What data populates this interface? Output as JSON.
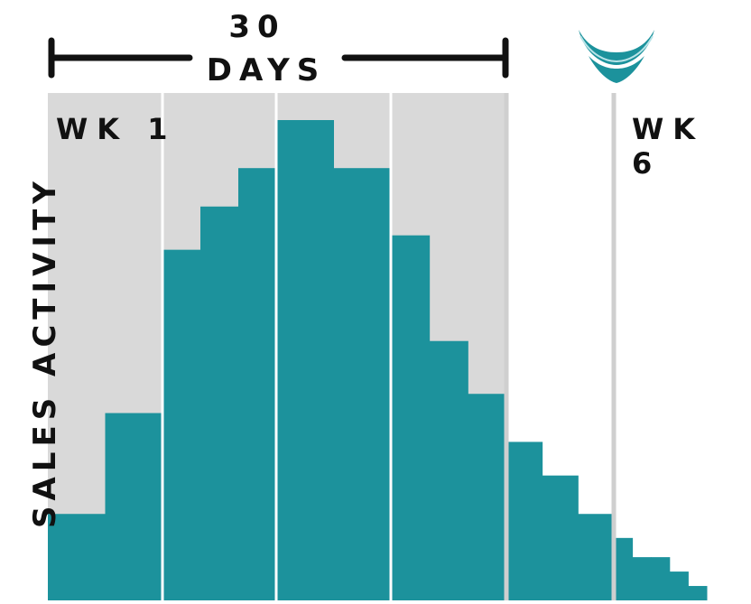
{
  "title": {
    "number": "30",
    "unit": "DAYS"
  },
  "chart_data": {
    "type": "bar",
    "title": "30 DAYS",
    "xlabel": "",
    "ylabel": "SALES ACTIVITY",
    "ylim": [
      0,
      100
    ],
    "grid": true,
    "week_labels": {
      "start": "WK 1",
      "end": "WK 6"
    },
    "shaded_weeks": [
      1,
      2,
      3,
      4
    ],
    "weeks": 6,
    "values": [
      18,
      39,
      73,
      82,
      90,
      100,
      90,
      76,
      54,
      43,
      33,
      26,
      18,
      13,
      9,
      9,
      6,
      3
    ],
    "colors": {
      "bars": "#1c929c",
      "shade": "#d9d9d9",
      "divider": "#ffffff",
      "grid": "#cfcfcf"
    }
  },
  "logo": {
    "icon": "shield-chevron-icon",
    "color": "#1c929c"
  }
}
